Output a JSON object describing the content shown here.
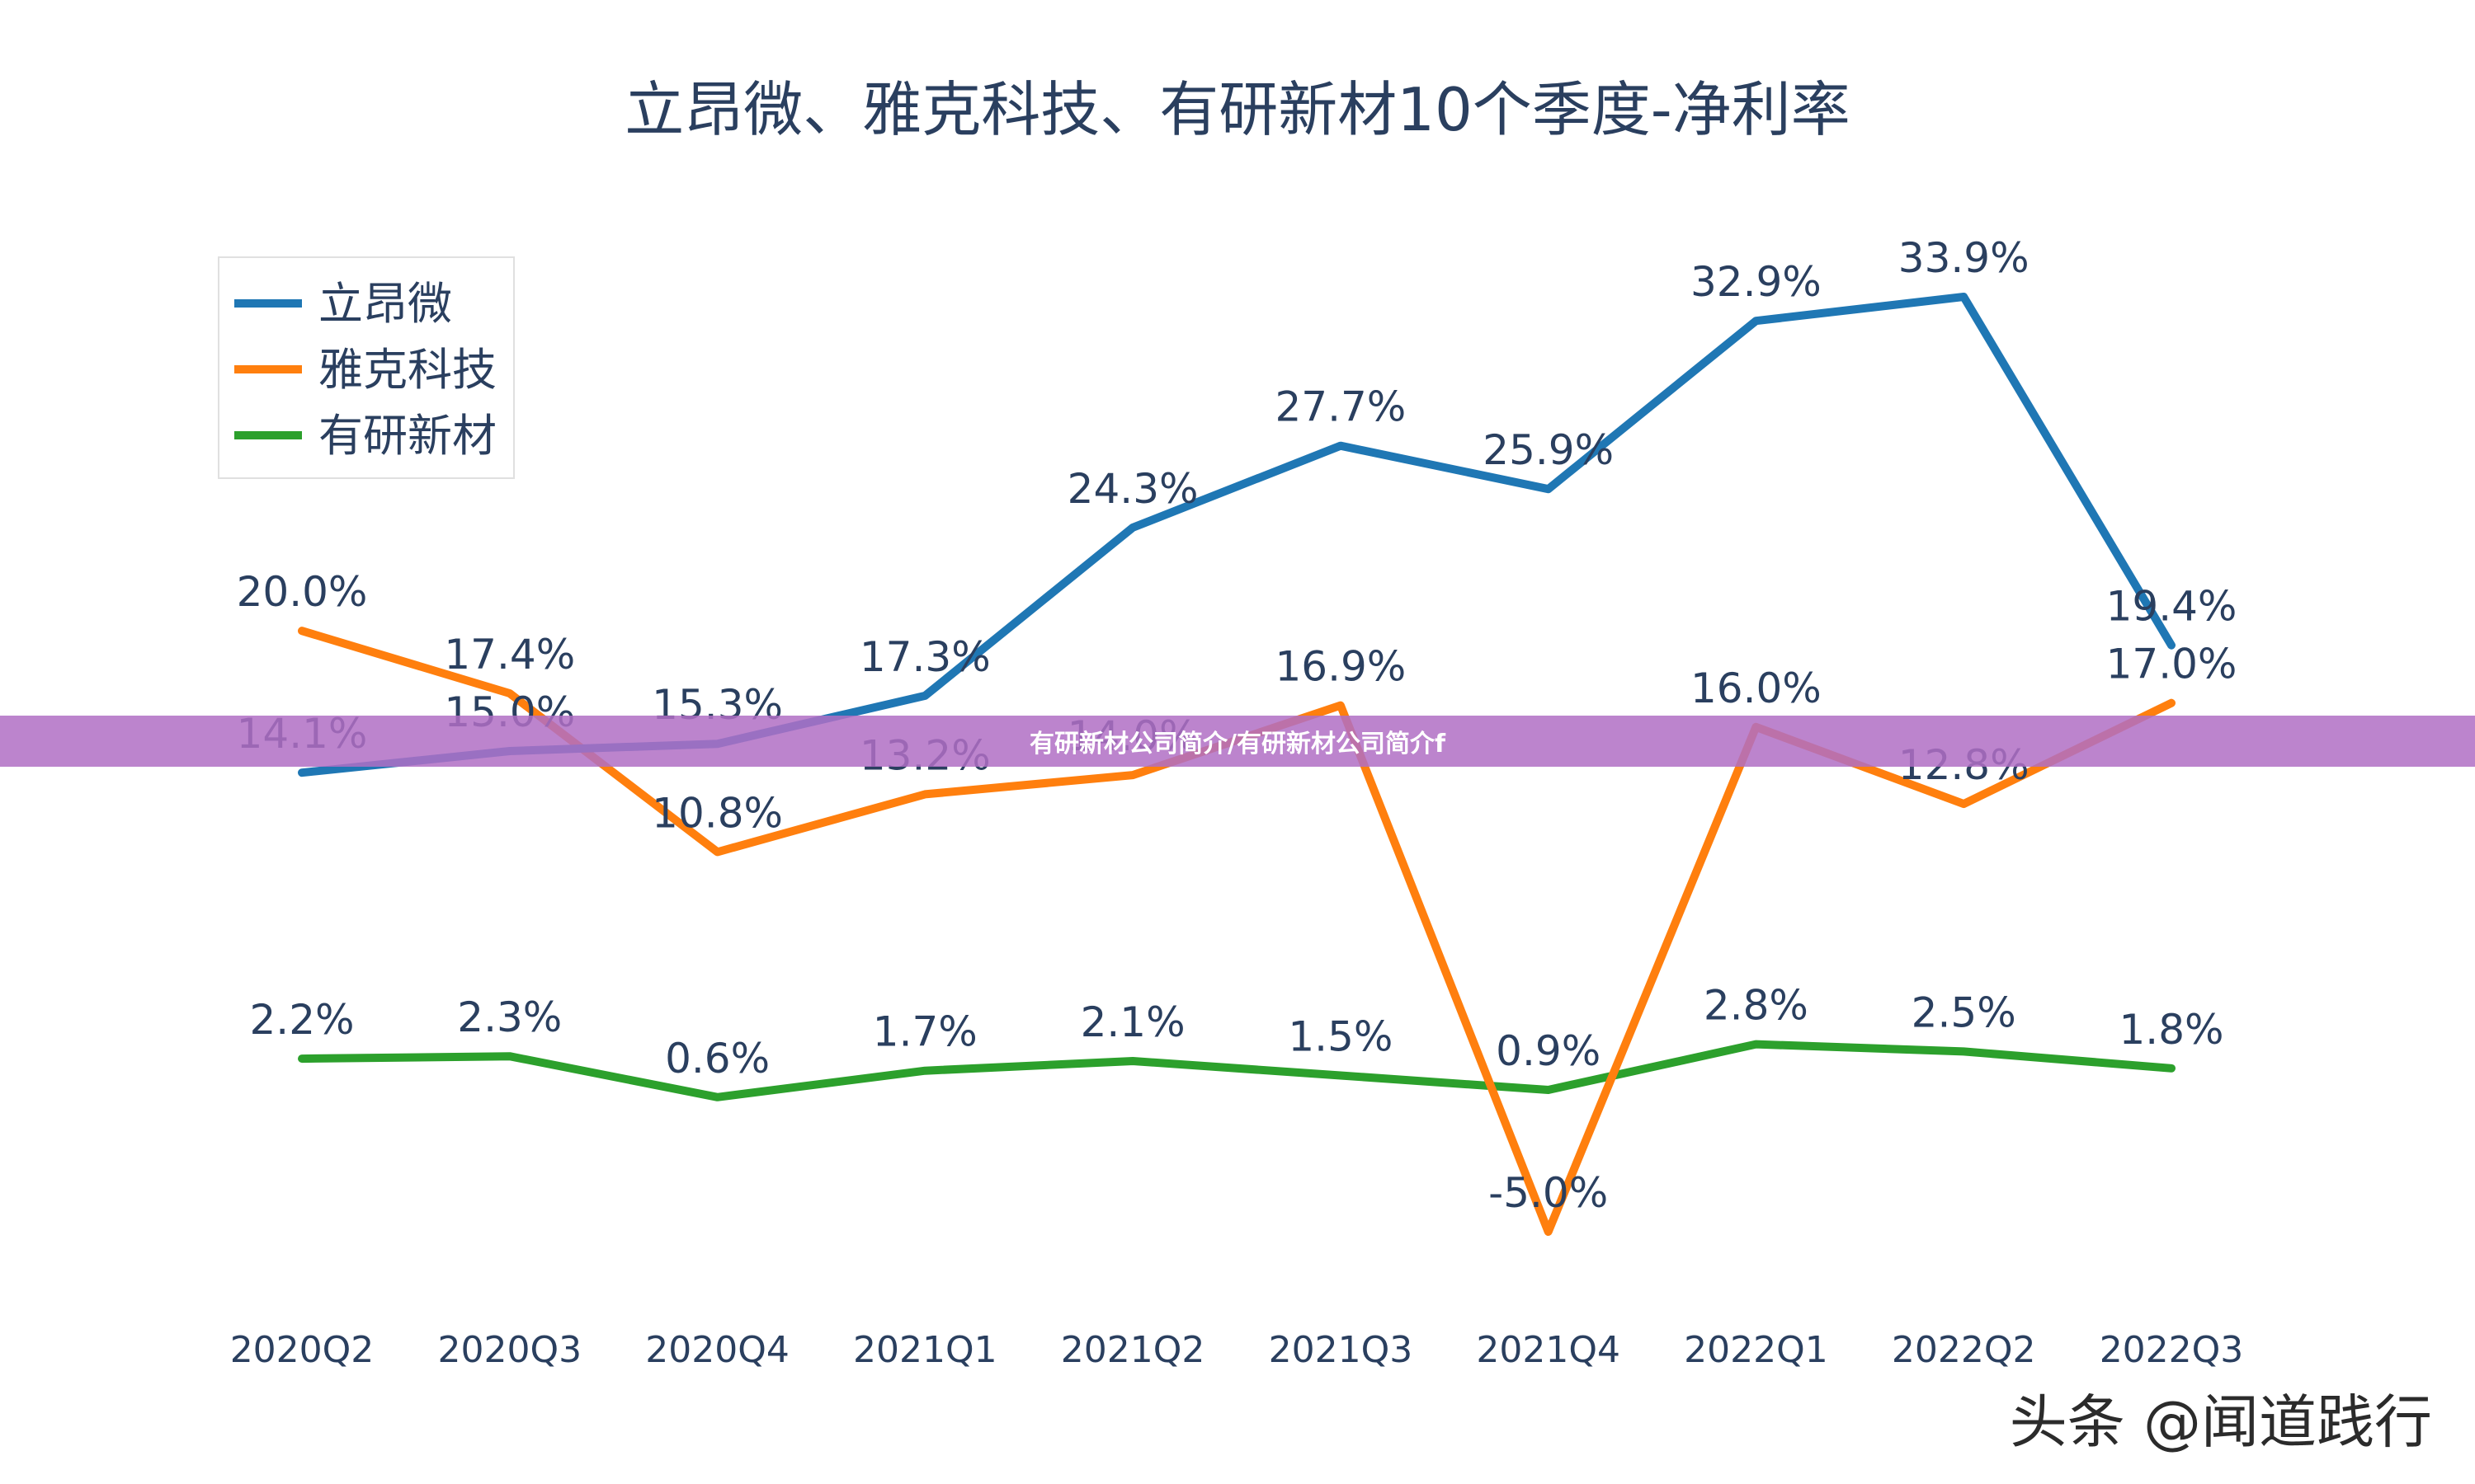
{
  "banner": {
    "text": "有研新材公司简介/有研新材公司简介f"
  },
  "watermark": {
    "text": "头条 @闻道践行"
  },
  "chart_data": {
    "type": "line",
    "title": "立昂微、雅克科技、有研新材10个季度-净利率",
    "categories": [
      "2020Q2",
      "2020Q3",
      "2020Q4",
      "2021Q1",
      "2021Q2",
      "2021Q3",
      "2021Q4",
      "2022Q1",
      "2022Q2",
      "2022Q3"
    ],
    "ylim": [
      -6,
      36
    ],
    "grid": false,
    "legend_position": "top-left",
    "series": [
      {
        "name": "立昂微",
        "color": "#1f77b4",
        "values": [
          14.1,
          15.0,
          15.3,
          17.3,
          24.3,
          27.7,
          25.9,
          32.9,
          33.9,
          19.4
        ],
        "labels": [
          "14.1%",
          "15.0%",
          "15.3%",
          "17.3%",
          "24.3%",
          "27.7%",
          "25.9%",
          "32.9%",
          "33.9%",
          "19.4%"
        ]
      },
      {
        "name": "雅克科技",
        "color": "#ff7f0e",
        "values": [
          20.0,
          17.4,
          10.8,
          13.2,
          14.0,
          16.9,
          -5.0,
          16.0,
          12.8,
          17.0
        ],
        "labels": [
          "20.0%",
          "17.4%",
          "10.8%",
          "13.2%",
          "14.0%",
          "16.9%",
          "-5.0%",
          "16.0%",
          "12.8%",
          "17.0%"
        ]
      },
      {
        "name": "有研新材",
        "color": "#2ca02c",
        "values": [
          2.2,
          2.3,
          0.6,
          1.7,
          2.1,
          1.5,
          0.9,
          2.8,
          2.5,
          1.8
        ],
        "labels": [
          "2.2%",
          "2.3%",
          "0.6%",
          "1.7%",
          "2.1%",
          "1.5%",
          "0.9%",
          "2.8%",
          "2.5%",
          "1.8%"
        ]
      }
    ]
  }
}
